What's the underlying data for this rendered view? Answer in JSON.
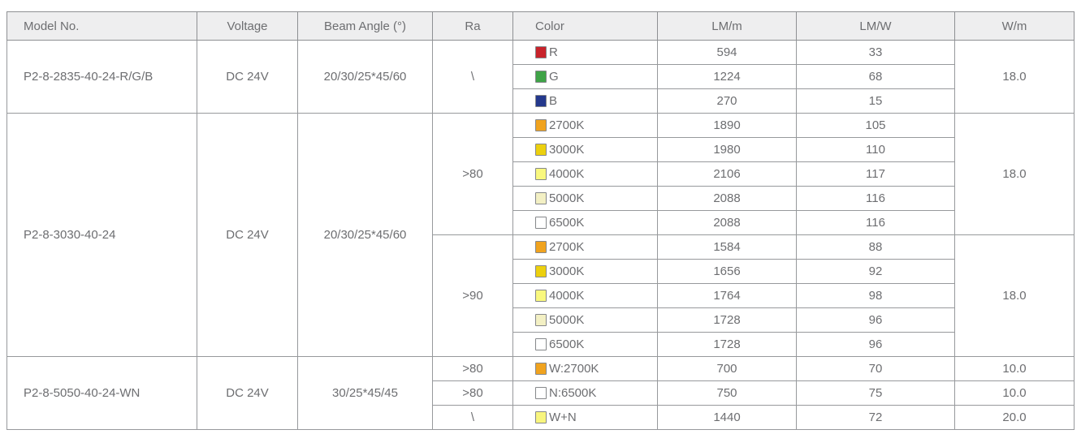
{
  "table": {
    "headers": [
      "Model No.",
      "Voltage",
      "Beam Angle (°)",
      "Ra",
      "Color",
      "LM/m",
      "LM/W",
      "W/m"
    ],
    "sections": [
      {
        "model": "P2-8-2835-40-24-R/G/B",
        "voltage": "DC 24V",
        "beam_angle": "20/30/25*45/60",
        "groups": [
          {
            "ra": "\\",
            "w_m": "18.0",
            "rows": [
              {
                "color": "R",
                "swatch": "#c8232b",
                "lm_m": "594",
                "lm_w": "33"
              },
              {
                "color": "G",
                "swatch": "#3fa347",
                "lm_m": "1224",
                "lm_w": "68"
              },
              {
                "color": "B",
                "swatch": "#24388c",
                "lm_m": "270",
                "lm_w": "15"
              }
            ]
          }
        ]
      },
      {
        "model": "P2-8-3030-40-24",
        "voltage": "DC 24V",
        "beam_angle": "20/30/25*45/60",
        "groups": [
          {
            "ra": ">80",
            "w_m": "18.0",
            "rows": [
              {
                "color": "2700K",
                "swatch": "#f0a31f",
                "lm_m": "1890",
                "lm_w": "105"
              },
              {
                "color": "3000K",
                "swatch": "#ecd00e",
                "lm_m": "1980",
                "lm_w": "110"
              },
              {
                "color": "4000K",
                "swatch": "#f9f87e",
                "lm_m": "2106",
                "lm_w": "117"
              },
              {
                "color": "5000K",
                "swatch": "#f3f0c4",
                "lm_m": "2088",
                "lm_w": "116"
              },
              {
                "color": "6500K",
                "swatch": "#ffffff",
                "lm_m": "2088",
                "lm_w": "116"
              }
            ]
          },
          {
            "ra": ">90",
            "w_m": "18.0",
            "rows": [
              {
                "color": "2700K",
                "swatch": "#f0a31f",
                "lm_m": "1584",
                "lm_w": "88"
              },
              {
                "color": "3000K",
                "swatch": "#ecd00e",
                "lm_m": "1656",
                "lm_w": "92"
              },
              {
                "color": "4000K",
                "swatch": "#f9f87e",
                "lm_m": "1764",
                "lm_w": "98"
              },
              {
                "color": "5000K",
                "swatch": "#f3f0c4",
                "lm_m": "1728",
                "lm_w": "96"
              },
              {
                "color": "6500K",
                "swatch": "#ffffff",
                "lm_m": "1728",
                "lm_w": "96"
              }
            ]
          }
        ]
      },
      {
        "model": "P2-8-5050-40-24-WN",
        "voltage": "DC 24V",
        "beam_angle": "30/25*45/45",
        "groups": [
          {
            "ra": ">80",
            "w_m": "10.0",
            "rows": [
              {
                "color": "W:2700K",
                "swatch": "#f0a31f",
                "lm_m": "700",
                "lm_w": "70"
              }
            ]
          },
          {
            "ra": ">80",
            "w_m": "10.0",
            "rows": [
              {
                "color": "N:6500K",
                "swatch": "#ffffff",
                "lm_m": "750",
                "lm_w": "75"
              }
            ]
          },
          {
            "ra": "\\",
            "w_m": "20.0",
            "rows": [
              {
                "color": "W+N",
                "swatch": "#f8f57e",
                "lm_m": "1440",
                "lm_w": "72"
              }
            ]
          }
        ]
      }
    ]
  }
}
